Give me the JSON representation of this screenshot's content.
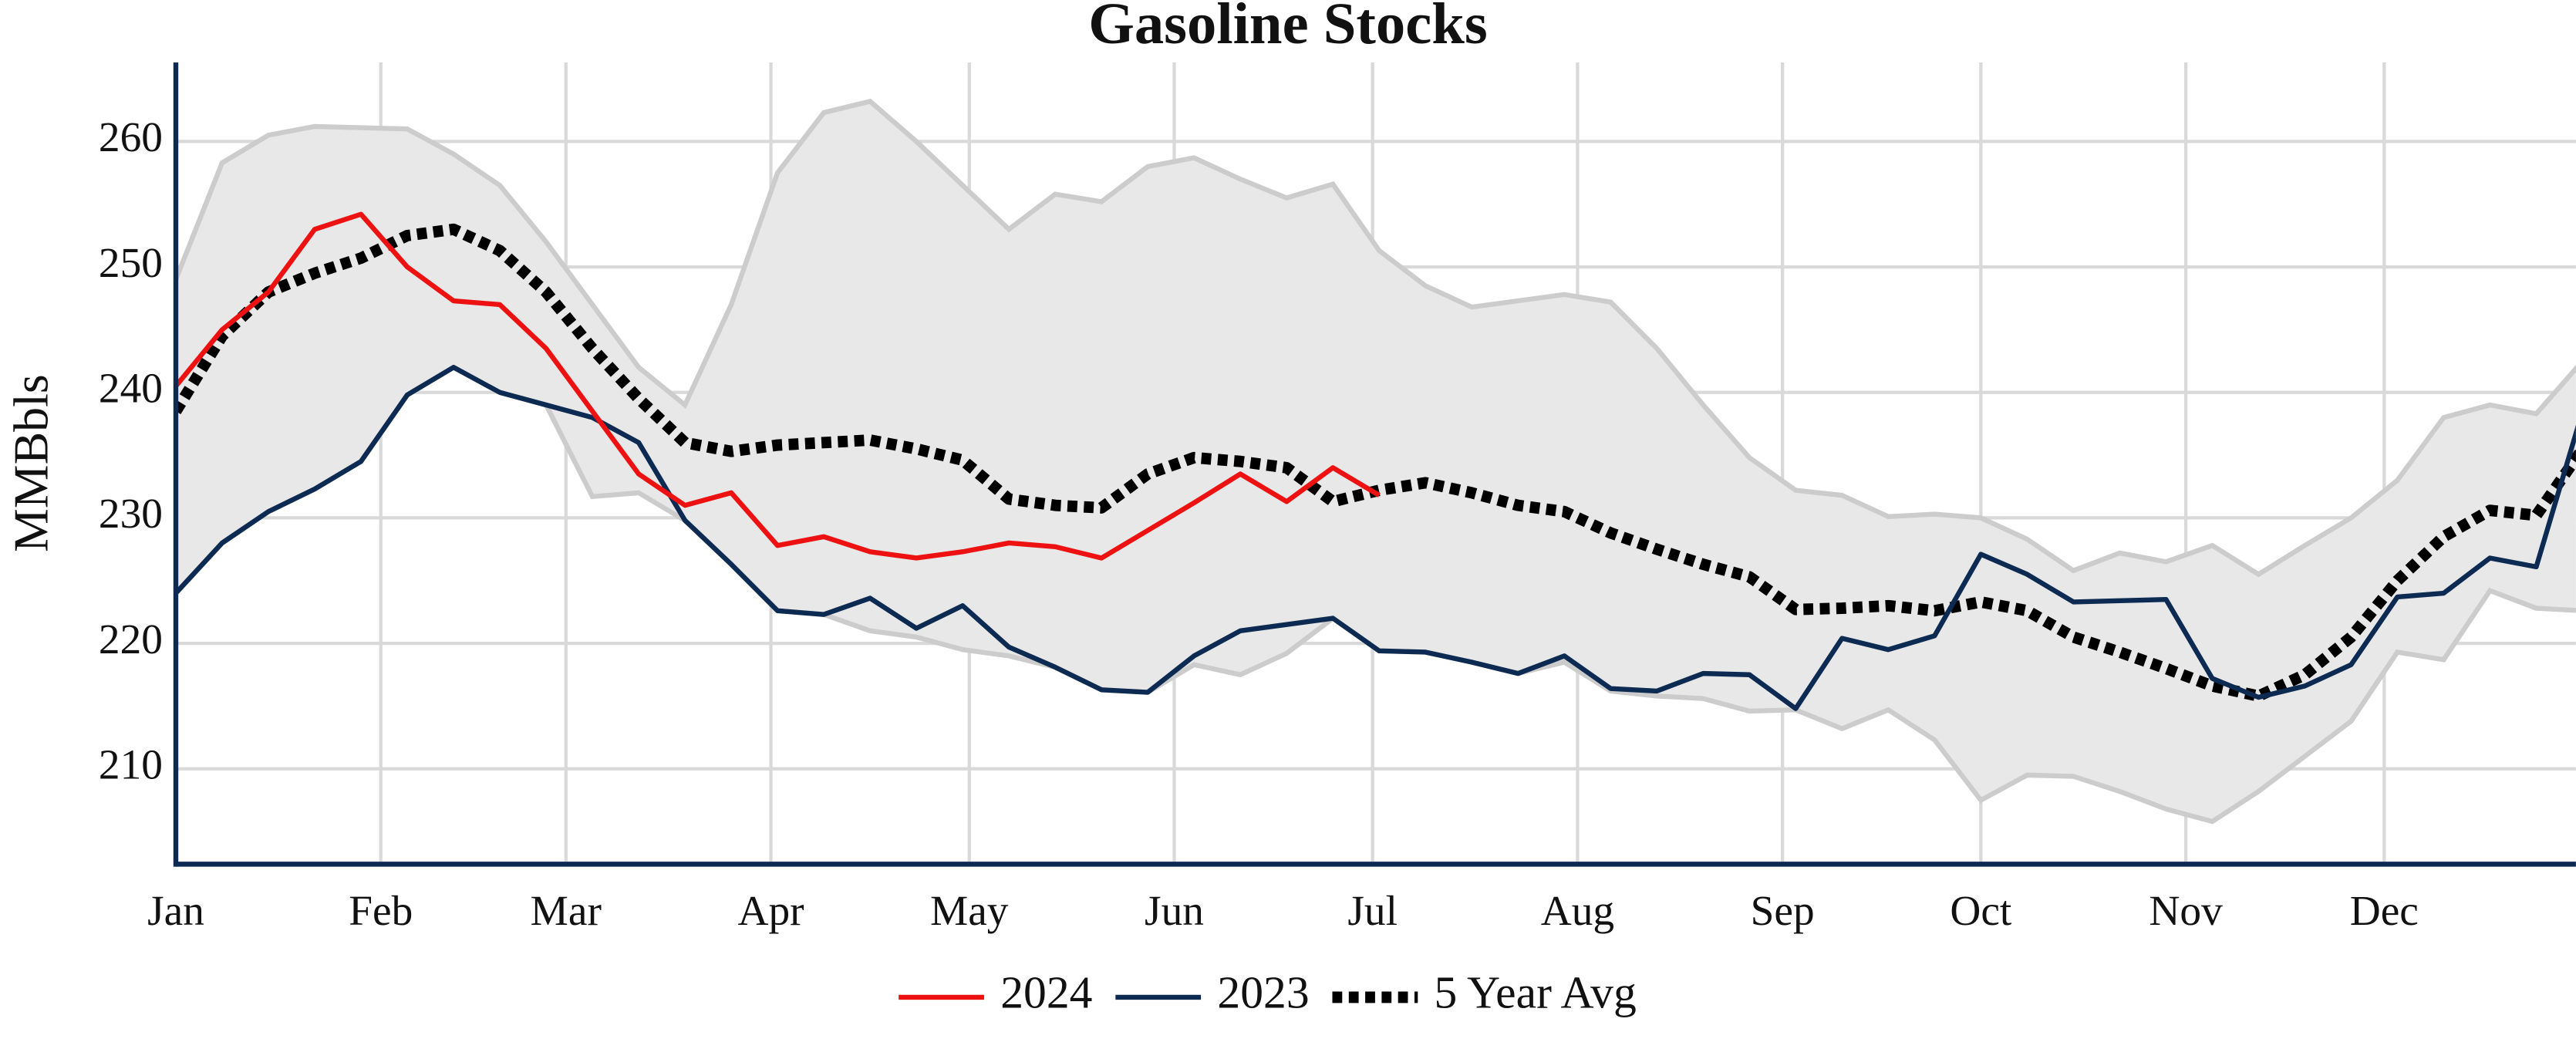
{
  "chart_data": {
    "type": "line",
    "title": "Gasoline Stocks",
    "ylabel": "MMBbls",
    "x": [
      0,
      7,
      14,
      21,
      28,
      35,
      42,
      49,
      56,
      63,
      70,
      77,
      84,
      91,
      98,
      105,
      112,
      119,
      126,
      133,
      140,
      147,
      154,
      161,
      168,
      175,
      182,
      189,
      196,
      203,
      210,
      217,
      224,
      231,
      238,
      245,
      252,
      259,
      266,
      273,
      280,
      287,
      294,
      301,
      308,
      315,
      322,
      329,
      336,
      343,
      350,
      357,
      364
    ],
    "xlim": [
      0,
      363
    ],
    "xticks": [
      {
        "value": 0,
        "label": "Jan"
      },
      {
        "value": 31,
        "label": "Feb"
      },
      {
        "value": 59,
        "label": "Mar"
      },
      {
        "value": 90,
        "label": "Apr"
      },
      {
        "value": 120,
        "label": "May"
      },
      {
        "value": 151,
        "label": "Jun"
      },
      {
        "value": 181,
        "label": "Jul"
      },
      {
        "value": 212,
        "label": "Aug"
      },
      {
        "value": 243,
        "label": "Sep"
      },
      {
        "value": 273,
        "label": "Oct"
      },
      {
        "value": 304,
        "label": "Nov"
      },
      {
        "value": 334,
        "label": "Dec"
      }
    ],
    "ylim": [
      202.4,
      266.3
    ],
    "yticks": [
      210,
      220,
      230,
      240,
      250,
      260
    ],
    "grid": true,
    "band": {
      "color": "#e8e8e8",
      "edge_color": "#cccccc",
      "upper": [
        249,
        258.3,
        260.5,
        261.2,
        261.1,
        261,
        259,
        256.5,
        252,
        247,
        242,
        239,
        247,
        257.5,
        262.3,
        263.2,
        260,
        256.5,
        253,
        255.8,
        255.2,
        258,
        258.7,
        257,
        255.5,
        256.6,
        251.3,
        248.5,
        246.8,
        247.3,
        247.8,
        247.2,
        243.5,
        239,
        234.8,
        232.2,
        231.8,
        230.1,
        230.3,
        230,
        228.3,
        225.8,
        227.2,
        226.5,
        227.8,
        225.5,
        227.8,
        230,
        233,
        238,
        239,
        238.3,
        242.5
      ],
      "lower": [
        224,
        228,
        230.5,
        232.3,
        234.5,
        239.8,
        242,
        240,
        239,
        231.7,
        232,
        229.8,
        226.3,
        222.6,
        222.3,
        221,
        220.5,
        219.5,
        219,
        218.1,
        216.3,
        216.1,
        218.3,
        217.5,
        219.2,
        222,
        219.4,
        219.3,
        218.5,
        217.6,
        218.5,
        216.2,
        215.8,
        215.6,
        214.6,
        214.7,
        213.2,
        214.7,
        212.3,
        207.5,
        209.5,
        209.4,
        208.2,
        206.8,
        205.8,
        208.2,
        211,
        213.8,
        219.3,
        218.7,
        224.2,
        222.8,
        222.6
      ]
    },
    "series": [
      {
        "name": "2024",
        "color": "#ee1111",
        "dashed": false,
        "values": [
          240.5,
          245,
          248,
          253,
          254.2,
          250,
          247.3,
          247,
          243.5,
          238.5,
          233.5,
          231,
          232,
          227.8,
          228.5,
          227.3,
          226.8,
          227.3,
          228,
          227.7,
          226.8,
          229,
          231.2,
          233.5,
          231.3,
          234,
          231.8,
          null,
          null,
          null,
          null,
          null,
          null,
          null,
          null,
          null,
          null,
          null,
          null,
          null,
          null,
          null,
          null,
          null,
          null,
          null,
          null,
          null,
          null,
          null,
          null,
          null,
          null
        ]
      },
      {
        "name": "2023",
        "color": "#0d2b52",
        "dashed": false,
        "values": [
          224,
          228,
          230.5,
          232.3,
          234.5,
          239.8,
          242,
          240,
          239,
          238,
          236,
          229.8,
          226.3,
          222.6,
          222.3,
          223.6,
          221.2,
          223,
          219.7,
          218.1,
          216.3,
          216.1,
          219,
          221,
          221.5,
          222,
          219.4,
          219.3,
          218.5,
          217.6,
          219,
          216.4,
          216.2,
          217.6,
          217.5,
          214.8,
          220.4,
          219.5,
          220.6,
          227.1,
          225.5,
          223.3,
          223.4,
          223.5,
          217.2,
          215.7,
          216.6,
          218.3,
          223.7,
          224,
          226.8,
          226.1,
          238.5
        ]
      },
      {
        "name": "5 Year Avg",
        "color": "#000000",
        "dashed": true,
        "values": [
          238.5,
          244.5,
          248,
          249.5,
          250.7,
          252.5,
          253,
          251.3,
          248,
          243.5,
          239.5,
          236,
          235.3,
          235.8,
          236,
          236.2,
          235.5,
          234.6,
          231.5,
          231,
          230.8,
          233.5,
          234.8,
          234.5,
          234,
          231.3,
          232.2,
          232.8,
          232,
          231,
          230.5,
          228.8,
          227.5,
          226.3,
          225.3,
          222.7,
          222.8,
          223,
          222.6,
          223.3,
          222.6,
          220.5,
          219.3,
          218,
          216.6,
          215.8,
          217.5,
          220.5,
          225,
          228.5,
          230.6,
          230.2,
          235.5
        ]
      }
    ]
  }
}
